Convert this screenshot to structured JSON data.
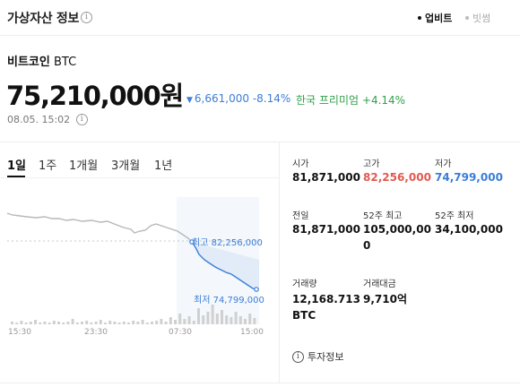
{
  "header": {
    "title": "가상자산 정보",
    "info_icon": "info-icon",
    "sources": [
      {
        "label": "업비트",
        "active": true
      },
      {
        "label": "빗썸",
        "active": false
      }
    ]
  },
  "asset": {
    "name": "비트코인",
    "ticker": "BTC",
    "price": "75,210,000원",
    "change_amount": "6,661,000",
    "change_percent": "-8.14%",
    "premium_label": "한국 프리미엄",
    "premium_value": "+4.14%",
    "timestamp": "08.05. 15:02"
  },
  "period_tabs": [
    {
      "label": "1일",
      "active": true
    },
    {
      "label": "1주",
      "active": false
    },
    {
      "label": "1개월",
      "active": false
    },
    {
      "label": "3개월",
      "active": false
    },
    {
      "label": "1년",
      "active": false
    }
  ],
  "chart": {
    "high_label": "최고 82,256,000",
    "low_label": "최저 74,799,000",
    "x_ticks": [
      "15:30",
      "23:30",
      "07:30",
      "15:00"
    ],
    "colors": {
      "line": "#3b7dd8",
      "fill": "#dce8f7",
      "volume": "#d0d0d0"
    }
  },
  "stats": [
    {
      "label": "시가",
      "value": "81,871,000",
      "tone": "normal"
    },
    {
      "label": "고가",
      "value": "82,256,000",
      "tone": "high"
    },
    {
      "label": "저가",
      "value": "74,799,000",
      "tone": "low"
    },
    {
      "label": "전일",
      "value": "81,871,000",
      "tone": "normal"
    },
    {
      "label": "52주 최고",
      "value": "105,000,000",
      "tone": "normal"
    },
    {
      "label": "52주 최저",
      "value": "34,100,000",
      "tone": "normal"
    },
    {
      "label": "거래량",
      "value": "12,168.713 BTC",
      "tone": "normal"
    },
    {
      "label": "거래대금",
      "value": "9,710억",
      "tone": "normal"
    }
  ],
  "invest_info": "투자정보"
}
